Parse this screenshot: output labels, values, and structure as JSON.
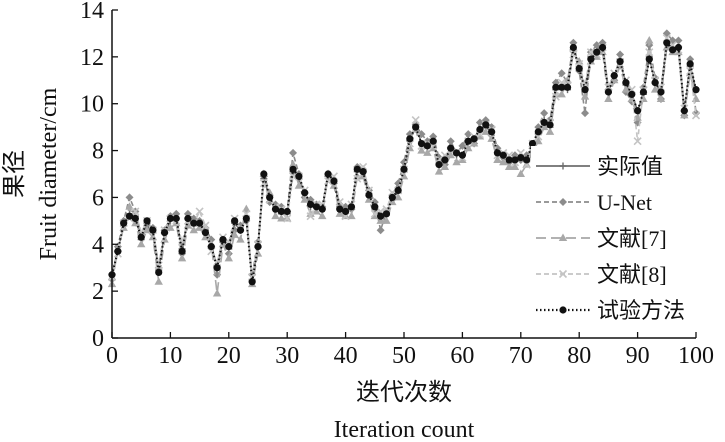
{
  "chart_data": {
    "type": "line",
    "xlabel": "迭代次数",
    "xlabel_en": "Iteration count",
    "ylabel": "果径",
    "ylabel_en": "Fruit diameter/cm",
    "xlim": [
      0,
      100
    ],
    "ylim": [
      0,
      14
    ],
    "xticks": [
      "0",
      "10",
      "20",
      "30",
      "40",
      "50",
      "60",
      "70",
      "80",
      "90",
      "100"
    ],
    "yticks": [
      "0",
      "2",
      "4",
      "6",
      "8",
      "10",
      "12",
      "14"
    ],
    "grid": false,
    "legend_position": "right",
    "x": [
      0,
      1,
      2,
      3,
      4,
      5,
      6,
      7,
      8,
      9,
      10,
      11,
      12,
      13,
      14,
      15,
      16,
      17,
      18,
      19,
      20,
      21,
      22,
      23,
      24,
      25,
      26,
      27,
      28,
      29,
      30,
      31,
      32,
      33,
      34,
      35,
      36,
      37,
      38,
      39,
      40,
      41,
      42,
      43,
      44,
      45,
      46,
      47,
      48,
      49,
      50,
      51,
      52,
      53,
      54,
      55,
      56,
      57,
      58,
      59,
      60,
      61,
      62,
      63,
      64,
      65,
      66,
      67,
      68,
      69,
      70,
      71,
      72,
      73,
      74,
      75,
      76,
      77,
      78,
      79,
      80,
      81,
      82,
      83,
      84,
      85,
      86,
      87,
      88,
      89,
      90,
      91,
      92,
      93,
      94,
      95,
      96,
      97,
      98,
      99,
      100
    ],
    "series": [
      {
        "name": "实际值",
        "style": "solid",
        "marker": "plus",
        "color": "#6e6e6e",
        "values": [
          2.7,
          3.7,
          4.8,
          5.3,
          5.2,
          4.2,
          4.8,
          4.5,
          2.9,
          4.5,
          5.0,
          5.1,
          3.8,
          5.1,
          4.8,
          4.9,
          4.6,
          3.9,
          3.1,
          4.2,
          3.8,
          4.9,
          4.6,
          5.2,
          2.5,
          3.9,
          6.8,
          6.0,
          5.5,
          5.3,
          5.3,
          7.1,
          6.8,
          6.2,
          5.6,
          5.6,
          5.5,
          6.9,
          6.7,
          5.6,
          5.4,
          5.5,
          7.1,
          7.1,
          6.1,
          5.5,
          5.2,
          5.3,
          6.0,
          6.2,
          7.1,
          8.4,
          9.1,
          8.3,
          8.2,
          8.4,
          7.4,
          7.6,
          8.1,
          7.8,
          7.8,
          8.3,
          8.5,
          8.9,
          9.0,
          8.8,
          7.9,
          7.8,
          7.6,
          7.6,
          7.8,
          7.6,
          8.2,
          8.7,
          9.3,
          9.0,
          10.6,
          10.7,
          10.6,
          12.3,
          11.6,
          10.6,
          12.0,
          12.3,
          12.5,
          10.5,
          11.2,
          11.9,
          10.8,
          10.4,
          9.7,
          10.4,
          12.0,
          10.9,
          10.5,
          12.6,
          12.4,
          12.4,
          9.7,
          11.6,
          10.6
        ]
      },
      {
        "name": "U-Net",
        "style": "dashed",
        "marker": "diamond",
        "color": "#8c8c8c",
        "values": [
          2.5,
          3.9,
          5.0,
          6.0,
          5.4,
          4.4,
          4.9,
          4.7,
          3.0,
          4.6,
          5.2,
          5.3,
          3.6,
          5.3,
          5.1,
          5.0,
          4.7,
          4.2,
          2.7,
          4.1,
          3.6,
          4.6,
          4.8,
          5.0,
          2.7,
          4.1,
          6.9,
          5.8,
          5.7,
          5.6,
          5.4,
          7.9,
          7.0,
          6.0,
          5.9,
          5.7,
          5.6,
          7.0,
          6.6,
          5.7,
          5.6,
          5.5,
          7.3,
          7.2,
          6.3,
          5.8,
          4.6,
          5.4,
          6.1,
          6.6,
          7.5,
          8.7,
          9.1,
          8.7,
          8.4,
          8.6,
          7.7,
          7.4,
          8.4,
          7.9,
          8.2,
          8.7,
          8.3,
          9.2,
          9.3,
          9.0,
          8.1,
          7.7,
          7.5,
          7.8,
          7.6,
          7.8,
          8.1,
          9.0,
          9.6,
          9.3,
          10.9,
          11.3,
          10.9,
          12.6,
          11.4,
          9.6,
          12.2,
          12.5,
          12.6,
          10.6,
          11.0,
          12.1,
          10.5,
          10.1,
          9.2,
          10.7,
          12.5,
          11.1,
          10.2,
          13.0,
          12.7,
          12.7,
          9.5,
          11.9,
          9.6
        ]
      },
      {
        "name": "文献[7]",
        "style": "longdash",
        "marker": "triangle",
        "color": "#a8a8a8",
        "values": [
          2.3,
          3.8,
          4.7,
          5.6,
          4.9,
          4.0,
          4.6,
          4.3,
          2.4,
          4.2,
          4.7,
          4.9,
          3.4,
          4.8,
          4.6,
          4.7,
          4.3,
          4.0,
          1.9,
          4.0,
          3.4,
          4.4,
          4.2,
          5.5,
          2.3,
          3.6,
          7.0,
          6.2,
          5.2,
          5.1,
          5.1,
          7.4,
          6.5,
          5.9,
          5.3,
          5.4,
          5.2,
          7.0,
          6.5,
          5.3,
          5.2,
          5.2,
          6.9,
          6.9,
          5.9,
          5.2,
          5.0,
          5.0,
          5.8,
          6.0,
          6.9,
          8.1,
          8.9,
          8.0,
          7.9,
          8.1,
          7.1,
          7.3,
          7.8,
          7.5,
          7.6,
          8.1,
          8.3,
          8.6,
          8.8,
          8.5,
          7.6,
          7.5,
          7.3,
          7.3,
          7.0,
          7.4,
          7.9,
          8.4,
          9.0,
          8.8,
          10.4,
          10.4,
          11.0,
          12.4,
          11.8,
          10.3,
          11.8,
          12.0,
          12.2,
          10.2,
          11.0,
          11.6,
          10.6,
          10.2,
          9.4,
          10.2,
          12.7,
          10.6,
          10.2,
          12.4,
          12.2,
          12.2,
          9.5,
          11.3,
          10.2
        ]
      },
      {
        "name": "文献[8]",
        "style": "dashed",
        "marker": "x",
        "color": "#c4c4c4",
        "values": [
          2.6,
          3.6,
          4.9,
          5.1,
          5.4,
          4.5,
          5.0,
          4.6,
          3.1,
          4.6,
          5.1,
          5.0,
          4.1,
          5.0,
          4.9,
          5.4,
          4.8,
          3.7,
          3.2,
          4.3,
          4.1,
          5.1,
          4.7,
          5.3,
          2.6,
          4.0,
          6.6,
          5.9,
          5.6,
          5.5,
          5.1,
          6.9,
          6.9,
          6.3,
          5.2,
          5.7,
          5.7,
          6.7,
          6.9,
          5.8,
          5.2,
          5.7,
          6.8,
          7.3,
          6.3,
          5.3,
          5.4,
          5.5,
          6.2,
          6.3,
          7.2,
          8.3,
          9.3,
          8.2,
          8.3,
          8.2,
          7.6,
          7.8,
          8.0,
          7.9,
          7.7,
          8.4,
          8.6,
          8.7,
          9.1,
          8.9,
          7.8,
          7.9,
          7.8,
          7.5,
          7.9,
          7.4,
          8.3,
          8.6,
          9.2,
          9.2,
          10.3,
          10.9,
          10.8,
          12.1,
          11.7,
          10.8,
          12.2,
          12.1,
          12.4,
          10.7,
          11.3,
          11.7,
          11.0,
          10.6,
          8.4,
          10.6,
          12.2,
          11.0,
          10.7,
          12.8,
          12.5,
          12.3,
          9.8,
          11.4,
          9.5
        ]
      },
      {
        "name": "试验方法",
        "style": "dotted",
        "marker": "circle",
        "color": "#111111",
        "values": [
          2.7,
          3.7,
          4.9,
          5.2,
          5.1,
          4.3,
          5.0,
          4.6,
          2.8,
          4.5,
          5.1,
          5.1,
          3.7,
          5.1,
          4.9,
          4.9,
          4.5,
          3.9,
          3.0,
          4.2,
          3.9,
          5.0,
          4.6,
          5.1,
          2.4,
          3.9,
          7.0,
          6.0,
          5.5,
          5.4,
          5.4,
          7.2,
          6.9,
          6.2,
          5.7,
          5.6,
          5.5,
          7.0,
          6.7,
          5.5,
          5.4,
          5.6,
          7.2,
          7.1,
          6.1,
          5.6,
          5.2,
          5.3,
          6.0,
          6.3,
          7.2,
          8.5,
          9.0,
          8.3,
          8.2,
          8.4,
          7.4,
          7.6,
          8.1,
          7.9,
          7.8,
          8.4,
          8.5,
          8.9,
          9.1,
          8.8,
          7.9,
          7.8,
          7.6,
          7.6,
          7.7,
          7.6,
          8.3,
          8.8,
          9.2,
          9.1,
          10.7,
          10.7,
          10.7,
          12.4,
          11.5,
          10.6,
          11.9,
          12.2,
          12.4,
          10.5,
          11.2,
          11.8,
          10.9,
          10.4,
          9.7,
          10.5,
          11.9,
          10.9,
          10.5,
          12.6,
          12.3,
          12.4,
          9.7,
          11.7,
          10.6
        ]
      }
    ]
  }
}
